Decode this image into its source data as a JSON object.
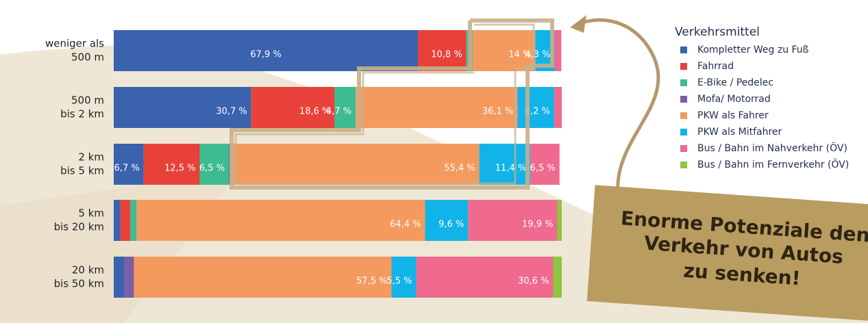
{
  "chart_data": {
    "type": "bar",
    "orientation": "horizontal",
    "stacked": true,
    "categories": [
      [
        "weniger als",
        "500 m"
      ],
      [
        "500 m",
        "bis 2 km"
      ],
      [
        "2 km",
        "bis 5 km"
      ],
      [
        "5 km",
        "bis 20 km"
      ],
      [
        "20 km",
        "bis 50 km"
      ]
    ],
    "xlim": [
      0,
      100
    ],
    "legend_title": "Verkehrsmittel",
    "legend": "right",
    "series": [
      {
        "name": "Kompletter Weg zu Fuß",
        "color": "#3a62ad",
        "values": [
          67.9,
          30.7,
          6.7,
          1.5,
          2.4
        ],
        "value_labels": [
          "67,9 %",
          "30,7 %",
          "6,7 %",
          null,
          null
        ]
      },
      {
        "name": "Fahrrad",
        "color": "#e8413a",
        "values": [
          10.8,
          18.6,
          12.5,
          2.2,
          0
        ],
        "value_labels": [
          "10,8 %",
          "18,6 %",
          "12,5 %",
          null,
          null
        ]
      },
      {
        "name": "E-Bike / Pedelec",
        "color": "#3dbd8f",
        "values": [
          1.4,
          4.7,
          6.5,
          1.4,
          0
        ],
        "value_labels": [
          null,
          "4,7 %",
          "6,5 %",
          null,
          null
        ]
      },
      {
        "name": "Mofa/ Motorrad",
        "color": "#7b5ea8",
        "values": [
          0,
          0,
          0.5,
          0,
          2.1
        ],
        "value_labels": [
          null,
          null,
          null,
          null,
          null
        ]
      },
      {
        "name": "PKW als Fahrer",
        "color": "#f59a5f",
        "values": [
          14,
          36.1,
          55.4,
          64.4,
          57.5
        ],
        "value_labels": [
          "14 %",
          "36,1 %",
          "55,4 %",
          "64,4 %",
          "57,5 %"
        ]
      },
      {
        "name": "PKW als Mitfahrer",
        "color": "#12b3e8",
        "values": [
          4.3,
          8.2,
          11.4,
          9.6,
          5.5
        ],
        "value_labels": [
          "4,3 %",
          "8,2 %",
          "11,4 %",
          "9,6 %",
          "5,5 %"
        ]
      },
      {
        "name": "Bus / Bahn im Nahverkehr (ÖV)",
        "color": "#ef6a8e",
        "values": [
          1.5,
          1.7,
          6.5,
          19.9,
          30.6
        ],
        "value_labels": [
          null,
          null,
          "6,5 %",
          "19,9 %",
          "30,6 %"
        ]
      },
      {
        "name": "Bus / Bahn im Fernverkehr (ÖV)",
        "color": "#8dc63f",
        "values": [
          0,
          0,
          0,
          1.0,
          1.9
        ],
        "value_labels": [
          null,
          null,
          null,
          null,
          null
        ]
      }
    ]
  },
  "callout": {
    "lines": [
      "Enorme Potenziale den",
      "Verkehr von Autos",
      "zu senken!"
    ]
  }
}
